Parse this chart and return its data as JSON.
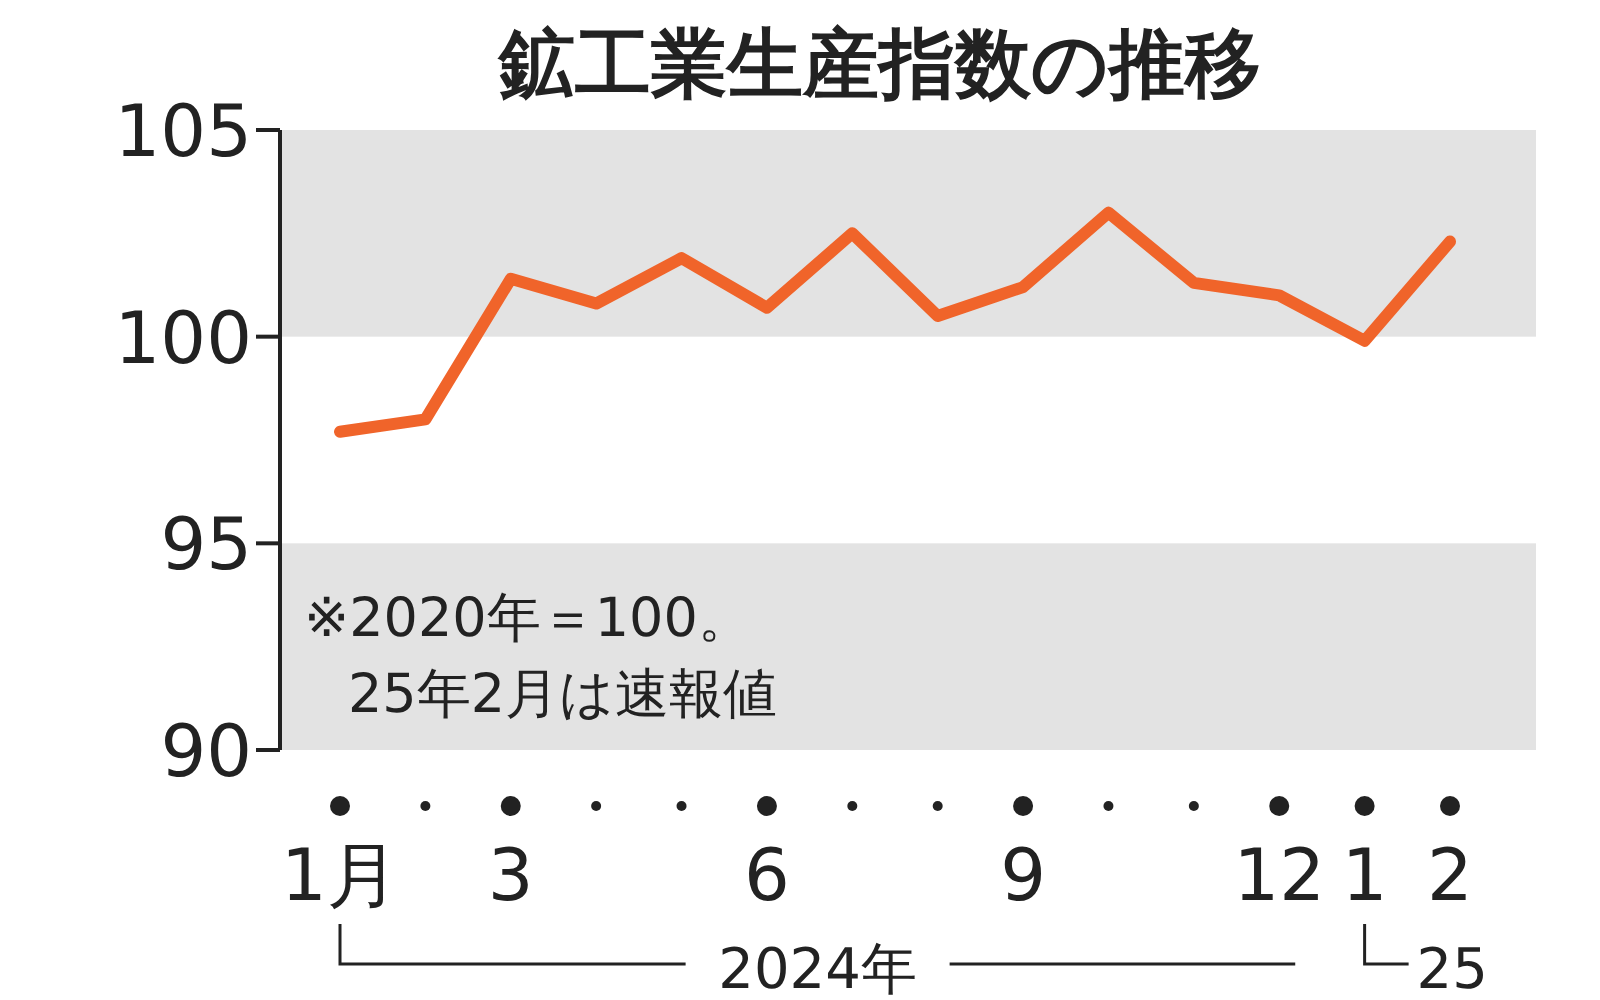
{
  "chart_data": {
    "type": "line",
    "title": "鉱工業生産指数の推移",
    "categories": [
      "1月",
      null,
      "3",
      null,
      null,
      "6",
      null,
      null,
      "9",
      null,
      null,
      "12",
      "1",
      "2"
    ],
    "values": [
      97.7,
      98.0,
      101.4,
      100.8,
      101.9,
      100.7,
      102.5,
      100.5,
      101.2,
      103.0,
      101.3,
      101.0,
      99.9,
      102.3
    ],
    "color": "#f0642a",
    "ylim": [
      90,
      105
    ],
    "yticks": [
      90,
      95,
      100,
      105
    ],
    "bands": [
      {
        "axis": "y",
        "from": 100,
        "to": 105,
        "color": "#e3e3e3"
      },
      {
        "axis": "y",
        "from": 90,
        "to": 95,
        "color": "#e3e3e3"
      }
    ],
    "annotations": [
      "※2020年＝100。",
      "25年2月は速報値",
      "2024年",
      "25"
    ],
    "grid": false,
    "marker": "none",
    "line_style": "solid"
  }
}
